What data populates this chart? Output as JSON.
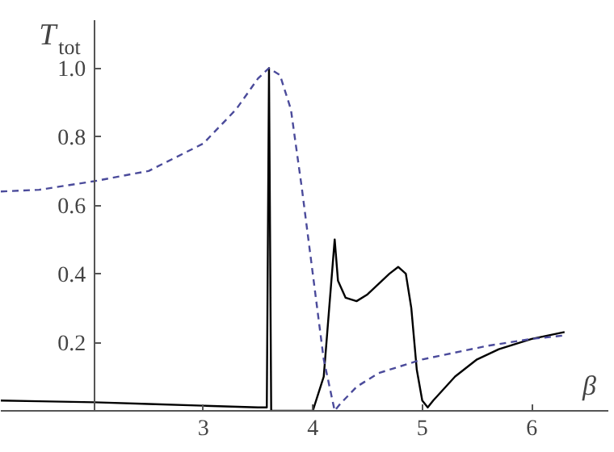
{
  "chart_data": {
    "type": "line",
    "xlabel": "β",
    "ylabel": "T$_{tot}$",
    "xlim": [
      1.15,
      6.7
    ],
    "ylim": [
      0,
      1.14
    ],
    "xticks": [
      3,
      4,
      5,
      6
    ],
    "yticks": [
      {
        "value": 0.2,
        "label": "0.2"
      },
      {
        "value": 0.4,
        "label": "0.4"
      },
      {
        "value": 0.6,
        "label": "0.6"
      },
      {
        "value": 0.8,
        "label": "0.8"
      },
      {
        "value": 1.0,
        "label": "1.0"
      }
    ],
    "series": [
      {
        "color": "#000000",
        "line_style": "solid",
        "x": [
          1.15,
          1.5,
          2,
          2.5,
          3,
          3.5,
          3.58,
          3.6,
          3.62,
          4.0,
          4.1,
          4.15,
          4.2,
          4.23,
          4.3,
          4.4,
          4.5,
          4.6,
          4.7,
          4.78,
          4.85,
          4.9,
          4.95,
          5.0,
          5.05,
          5.1,
          5.3,
          5.5,
          5.7,
          6.0,
          6.3
        ],
        "values": [
          0.03,
          0.028,
          0.025,
          0.02,
          0.015,
          0.01,
          0.01,
          1.0,
          0.0,
          0.0,
          0.1,
          0.3,
          0.5,
          0.38,
          0.33,
          0.32,
          0.34,
          0.37,
          0.4,
          0.42,
          0.4,
          0.3,
          0.12,
          0.03,
          0.01,
          0.03,
          0.1,
          0.15,
          0.18,
          0.21,
          0.23
        ]
      },
      {
        "color": "#4b4b9b",
        "line_style": "dashed",
        "x": [
          1.15,
          1.5,
          2,
          2.5,
          3.0,
          3.3,
          3.5,
          3.6,
          3.7,
          3.8,
          3.9,
          4.0,
          4.1,
          4.2,
          4.25,
          4.4,
          4.6,
          4.8,
          5.0,
          5.3,
          5.6,
          6.0,
          6.3
        ],
        "values": [
          0.64,
          0.645,
          0.67,
          0.7,
          0.78,
          0.88,
          0.97,
          1.0,
          0.98,
          0.88,
          0.65,
          0.4,
          0.15,
          0.0,
          0.02,
          0.07,
          0.11,
          0.13,
          0.15,
          0.17,
          0.19,
          0.21,
          0.22
        ]
      }
    ]
  }
}
